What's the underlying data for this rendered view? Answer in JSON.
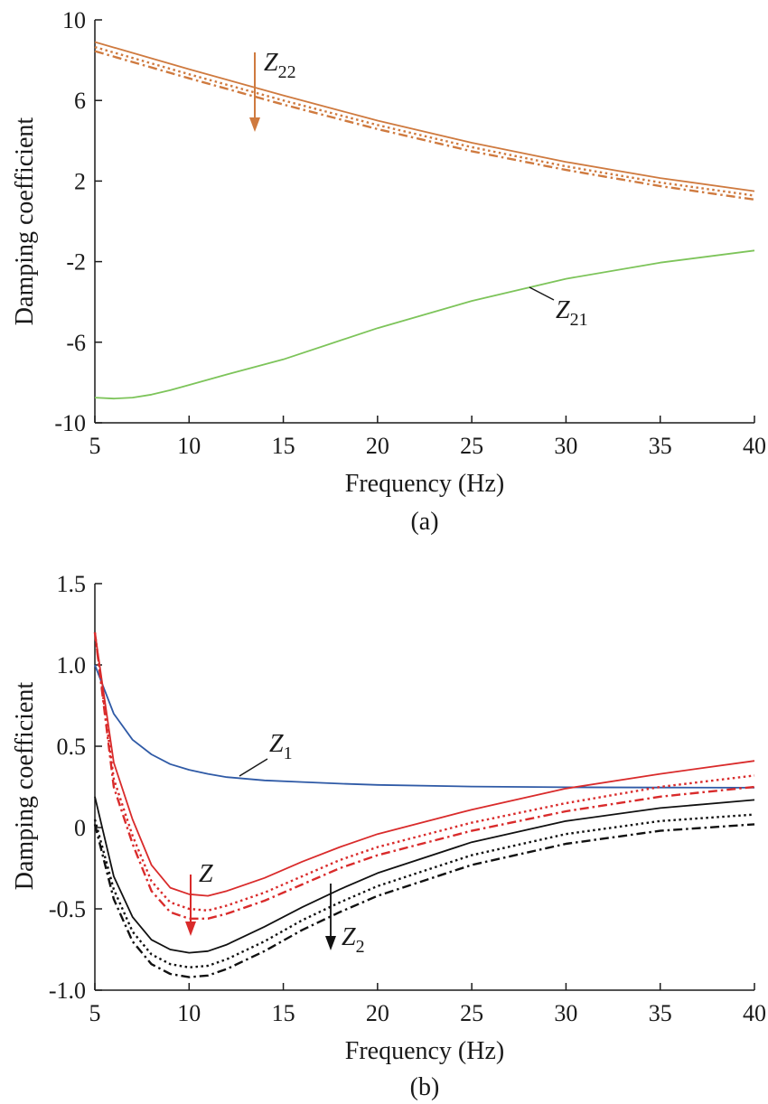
{
  "chart_data": [
    {
      "type": "line",
      "panel_label": "(a)",
      "xlabel": "Frequency (Hz)",
      "ylabel": "Damping coefficient",
      "xlim": [
        5,
        40
      ],
      "ylim": [
        -10,
        10
      ],
      "xticks": [
        "5",
        "10",
        "15",
        "20",
        "25",
        "30",
        "35",
        "40"
      ],
      "yticks": [
        "-10",
        "-6",
        "-2",
        "2",
        "6",
        "10"
      ],
      "grid": false,
      "x": [
        5,
        10,
        15,
        20,
        25,
        30,
        35,
        40
      ],
      "series": [
        {
          "group": "Z22",
          "style": "solid",
          "color": "#cf7a3f",
          "values": [
            8.9,
            7.55,
            6.25,
            5.0,
            3.9,
            2.95,
            2.15,
            1.5
          ]
        },
        {
          "group": "Z22",
          "style": "dotted",
          "color": "#cf7a3f",
          "values": [
            8.65,
            7.3,
            6.0,
            4.78,
            3.68,
            2.73,
            1.93,
            1.28
          ]
        },
        {
          "group": "Z22",
          "style": "dashdot",
          "color": "#cf7a3f",
          "values": [
            8.45,
            7.1,
            5.8,
            4.58,
            3.48,
            2.55,
            1.75,
            1.08
          ]
        },
        {
          "group": "Z21",
          "style": "solid",
          "color": "#7dc45a",
          "x": [
            5,
            6,
            7,
            8,
            9,
            10,
            12,
            15,
            20,
            25,
            30,
            35,
            40
          ],
          "values": [
            -8.75,
            -8.8,
            -8.75,
            -8.6,
            -8.38,
            -8.12,
            -7.6,
            -6.85,
            -5.3,
            -3.95,
            -2.85,
            -2.05,
            -1.45
          ]
        }
      ],
      "annotations": [
        {
          "text": "Z",
          "sub": "22",
          "color": "#cf7a3f",
          "arrow": "down"
        },
        {
          "text": "Z",
          "sub": "21"
        }
      ]
    },
    {
      "type": "line",
      "panel_label": "(b)",
      "xlabel": "Frequency (Hz)",
      "ylabel": "Damping coefficient",
      "xlim": [
        5,
        40
      ],
      "ylim": [
        -1.0,
        1.5
      ],
      "xticks": [
        "5",
        "10",
        "15",
        "20",
        "25",
        "30",
        "35",
        "40"
      ],
      "yticks": [
        "-1.0",
        "-0.5",
        "0",
        "0.5",
        "1.0",
        "1.5"
      ],
      "grid": false,
      "x": [
        5,
        6,
        7,
        8,
        9,
        10,
        11,
        12,
        14,
        16,
        18,
        20,
        25,
        30,
        35,
        40
      ],
      "series": [
        {
          "group": "Z1",
          "style": "solid",
          "color": "#2f5aa6",
          "values": [
            1.0,
            0.7,
            0.54,
            0.45,
            0.39,
            0.355,
            0.33,
            0.31,
            0.29,
            0.28,
            0.27,
            0.262,
            0.252,
            0.248,
            0.246,
            0.245
          ]
        },
        {
          "group": "Z",
          "style": "solid",
          "color": "#d92b2b",
          "values": [
            1.2,
            0.4,
            0.05,
            -0.23,
            -0.37,
            -0.41,
            -0.42,
            -0.39,
            -0.31,
            -0.21,
            -0.12,
            -0.04,
            0.11,
            0.24,
            0.33,
            0.41
          ]
        },
        {
          "group": "Z",
          "style": "dotted",
          "color": "#d92b2b",
          "values": [
            1.2,
            0.3,
            -0.05,
            -0.33,
            -0.46,
            -0.5,
            -0.51,
            -0.48,
            -0.4,
            -0.3,
            -0.2,
            -0.12,
            0.03,
            0.15,
            0.25,
            0.32
          ]
        },
        {
          "group": "Z",
          "style": "dashdot",
          "color": "#d92b2b",
          "values": [
            1.2,
            0.25,
            -0.1,
            -0.39,
            -0.52,
            -0.56,
            -0.56,
            -0.53,
            -0.45,
            -0.35,
            -0.25,
            -0.17,
            -0.02,
            0.1,
            0.19,
            0.25
          ]
        },
        {
          "group": "Z2",
          "style": "solid",
          "color": "#111111",
          "values": [
            0.19,
            -0.3,
            -0.55,
            -0.69,
            -0.75,
            -0.77,
            -0.76,
            -0.72,
            -0.61,
            -0.49,
            -0.38,
            -0.28,
            -0.09,
            0.04,
            0.12,
            0.17
          ]
        },
        {
          "group": "Z2",
          "style": "dotted",
          "color": "#111111",
          "values": [
            0.05,
            -0.38,
            -0.64,
            -0.78,
            -0.84,
            -0.86,
            -0.85,
            -0.81,
            -0.7,
            -0.57,
            -0.46,
            -0.36,
            -0.17,
            -0.04,
            0.04,
            0.08
          ]
        },
        {
          "group": "Z2",
          "style": "dashdot",
          "color": "#111111",
          "values": [
            0.02,
            -0.44,
            -0.7,
            -0.84,
            -0.9,
            -0.92,
            -0.91,
            -0.87,
            -0.76,
            -0.63,
            -0.52,
            -0.42,
            -0.23,
            -0.1,
            -0.02,
            0.02
          ]
        }
      ],
      "annotations": [
        {
          "text": "Z",
          "sub": "1"
        },
        {
          "text": "Z",
          "sub": "",
          "color": "#d92b2b",
          "arrow": "down"
        },
        {
          "text": "Z",
          "sub": "2",
          "color": "#111111",
          "arrow": "down"
        }
      ]
    }
  ]
}
